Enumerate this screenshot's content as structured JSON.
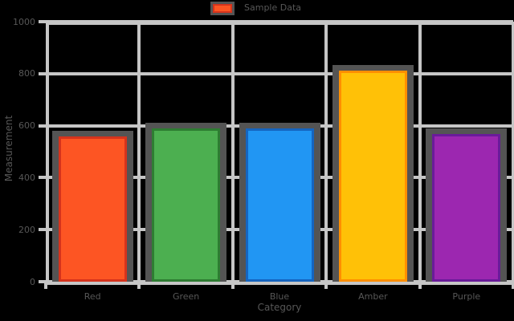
{
  "colors": {
    "background": "#000000",
    "text": "#575757",
    "grid": "#c6c6c6",
    "shadow": "#545454"
  },
  "legend": {
    "label": "Sample Data",
    "swatch_fill": "#FD5523",
    "swatch_edge": "#D6331C"
  },
  "chart_data": {
    "type": "bar",
    "title": "",
    "xlabel": "Category",
    "ylabel": "Measurement",
    "categories": [
      "Red",
      "Green",
      "Blue",
      "Amber",
      "Purple"
    ],
    "values": [
      560,
      590,
      590,
      812,
      568
    ],
    "bar_fill_colors": [
      "#FD5523",
      "#4CAF50",
      "#2196F3",
      "#FFC107",
      "#9C27B0"
    ],
    "bar_edge_colors": [
      "#D6331C",
      "#2E7D32",
      "#1565C0",
      "#FF8F00",
      "#6A1B9A"
    ],
    "ylim": [
      0,
      1000
    ],
    "yticks": [
      0,
      200,
      400,
      600,
      800,
      1000
    ],
    "ytick_labels": [
      "0",
      "200",
      "400",
      "600",
      "800",
      "1000"
    ],
    "grid": true,
    "legend_entries": [
      "Sample Data"
    ],
    "legend_position": "upper center"
  }
}
